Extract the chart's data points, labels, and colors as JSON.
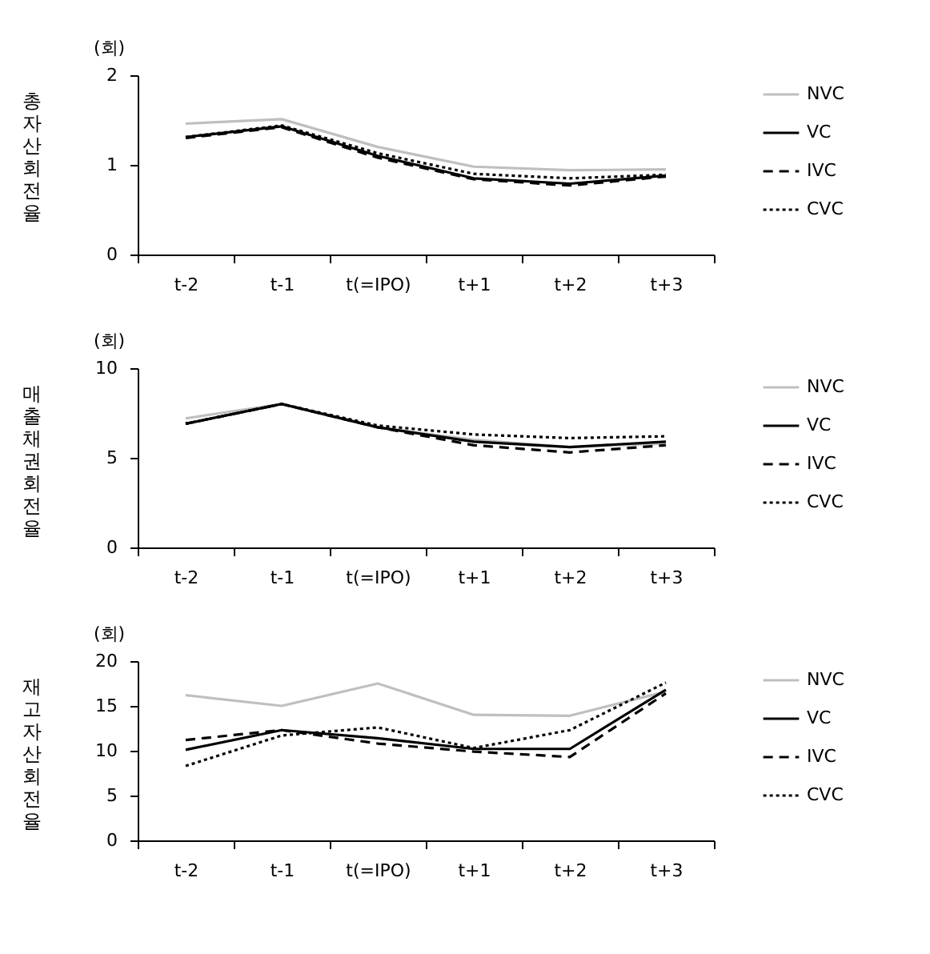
{
  "chart_data": [
    {
      "type": "line",
      "title": "총자산회전율",
      "ylabel": "(회)",
      "categories": [
        "t-2",
        "t-1",
        "t(=IPO)",
        "t+1",
        "t+2",
        "t+3"
      ],
      "ylim": [
        0,
        2
      ],
      "yticks": [
        0,
        1,
        2
      ],
      "grid": false,
      "legend": "right",
      "series": [
        {
          "name": "NVC",
          "color": "#bfbfbf",
          "line_style": "solid",
          "values": [
            1.46,
            1.51,
            1.2,
            0.98,
            0.94,
            0.95
          ]
        },
        {
          "name": "VC",
          "color": "#000000",
          "line_style": "solid",
          "values": [
            1.31,
            1.43,
            1.1,
            0.85,
            0.79,
            0.88
          ]
        },
        {
          "name": "IVC",
          "color": "#000000",
          "line_style": "dashed",
          "values": [
            1.3,
            1.42,
            1.08,
            0.84,
            0.77,
            0.87
          ]
        },
        {
          "name": "CVC",
          "color": "#000000",
          "line_style": "dotted",
          "values": [
            1.31,
            1.44,
            1.13,
            0.9,
            0.85,
            0.89
          ]
        }
      ]
    },
    {
      "type": "line",
      "title": "매출채권회전율",
      "ylabel": "(회)",
      "categories": [
        "t-2",
        "t-1",
        "t(=IPO)",
        "t+1",
        "t+2",
        "t+3"
      ],
      "ylim": [
        0,
        10
      ],
      "yticks": [
        0,
        5,
        10
      ],
      "grid": false,
      "legend": "right",
      "series": [
        {
          "name": "NVC",
          "color": "#bfbfbf",
          "line_style": "solid",
          "values": [
            7.2,
            8.0,
            6.7,
            6.0,
            5.6,
            5.8
          ]
        },
        {
          "name": "VC",
          "color": "#000000",
          "line_style": "solid",
          "values": [
            6.9,
            8.0,
            6.7,
            5.9,
            5.6,
            5.9
          ]
        },
        {
          "name": "IVC",
          "color": "#000000",
          "line_style": "dashed",
          "values": [
            6.9,
            8.0,
            6.7,
            5.7,
            5.3,
            5.7
          ]
        },
        {
          "name": "CVC",
          "color": "#000000",
          "line_style": "dotted",
          "values": [
            6.9,
            8.0,
            6.8,
            6.3,
            6.1,
            6.2
          ]
        }
      ]
    },
    {
      "type": "line",
      "title": "재고자산회전율",
      "ylabel": "(회)",
      "categories": [
        "t-2",
        "t-1",
        "t(=IPO)",
        "t+1",
        "t+2",
        "t+3"
      ],
      "ylim": [
        0,
        20
      ],
      "yticks": [
        0,
        5,
        10,
        15,
        20
      ],
      "grid": false,
      "legend": "right",
      "series": [
        {
          "name": "NVC",
          "color": "#bfbfbf",
          "line_style": "solid",
          "values": [
            16.2,
            15.0,
            17.5,
            14.0,
            13.9,
            16.6
          ]
        },
        {
          "name": "VC",
          "color": "#000000",
          "line_style": "solid",
          "values": [
            10.1,
            12.3,
            11.4,
            10.2,
            10.2,
            16.8
          ]
        },
        {
          "name": "IVC",
          "color": "#000000",
          "line_style": "dashed",
          "values": [
            11.2,
            12.3,
            10.8,
            9.9,
            9.3,
            16.4
          ]
        },
        {
          "name": "CVC",
          "color": "#000000",
          "line_style": "dotted",
          "values": [
            8.3,
            11.7,
            12.6,
            10.3,
            12.3,
            17.6
          ]
        }
      ]
    }
  ]
}
